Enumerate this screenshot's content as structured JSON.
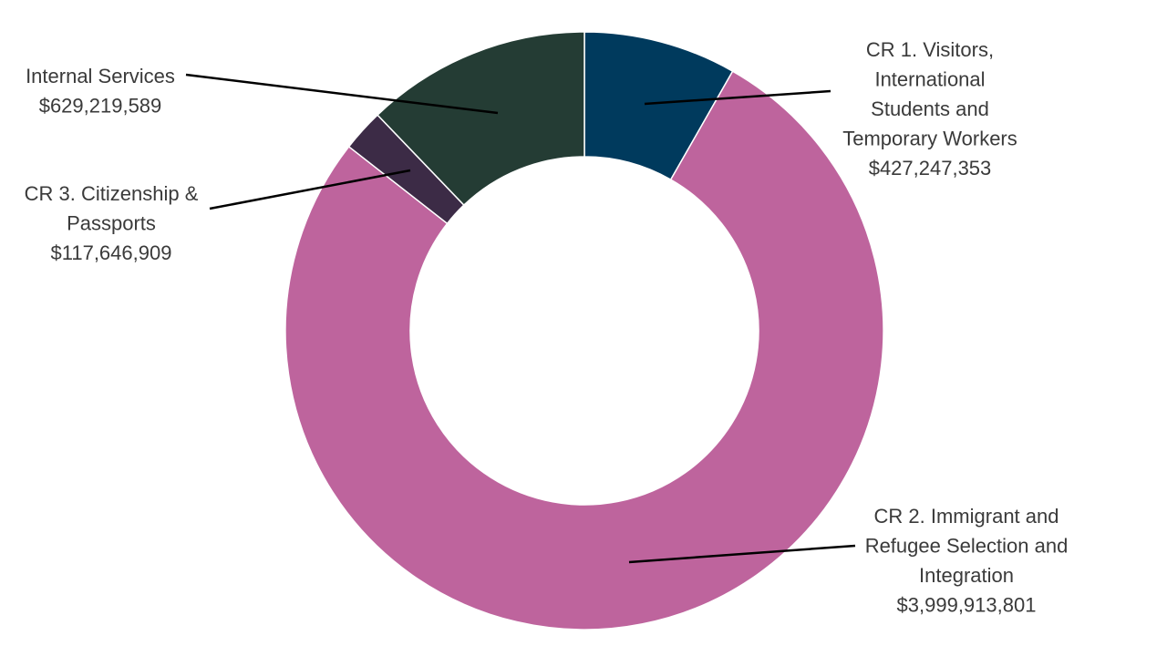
{
  "chart_data": {
    "type": "pie",
    "variant": "donut",
    "title": "",
    "slices": [
      {
        "name": "CR 1. Visitors, International Students and Temporary Workers",
        "label_lines": [
          "CR 1. Visitors,",
          "International",
          "Students and",
          "Temporary Workers"
        ],
        "value_text": "$427,247,353",
        "value": 427247353,
        "color": "#003a5d"
      },
      {
        "name": "CR 2. Immigrant and Refugee Selection and Integration",
        "label_lines": [
          "CR 2. Immigrant and",
          "Refugee Selection and",
          "Integration"
        ],
        "value_text": "$3,999,913,801",
        "value": 3999913801,
        "color": "#be649d"
      },
      {
        "name": "CR 3. Citizenship & Passports",
        "label_lines": [
          "CR 3. Citizenship &",
          "Passports"
        ],
        "value_text": "$117,646,909",
        "value": 117646909,
        "color": "#3c2b46"
      },
      {
        "name": "Internal Services",
        "label_lines": [
          "Internal Services"
        ],
        "value_text": "$629,219,589",
        "value": 629219589,
        "color": "#243c34"
      }
    ]
  }
}
